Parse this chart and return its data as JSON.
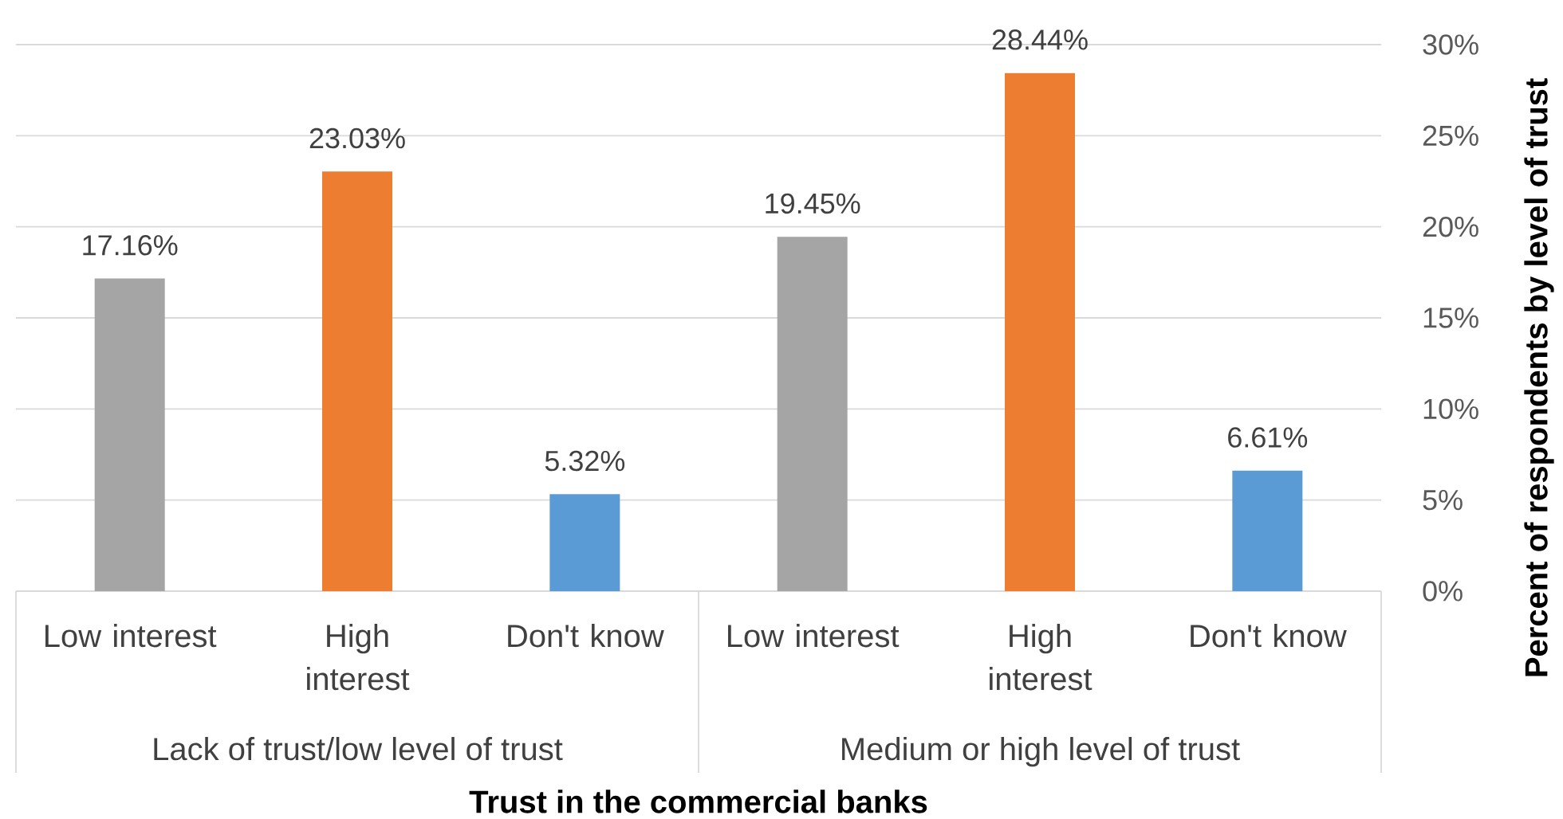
{
  "chart_data": {
    "type": "bar",
    "xlabel": "Trust in the commercial banks",
    "ylabel": "Percent of respondents by level of trust",
    "categories": [
      "Low interest",
      "High interest",
      "Don't know",
      "Low interest",
      "High interest",
      "Don't know"
    ],
    "values": [
      17.16,
      23.03,
      5.32,
      19.45,
      28.44,
      6.61
    ],
    "value_labels": [
      "17.16%",
      "23.03%",
      "5.32%",
      "19.45%",
      "28.44%",
      "6.61%"
    ],
    "colors": [
      "#a5a5a5",
      "#ed7d31",
      "#5b9bd5",
      "#a5a5a5",
      "#ed7d31",
      "#5b9bd5"
    ],
    "ylim": [
      0,
      30
    ],
    "yticks": [
      {
        "value": 0,
        "label": "0%"
      },
      {
        "value": 5,
        "label": "5%"
      },
      {
        "value": 10,
        "label": "10%"
      },
      {
        "value": 15,
        "label": "15%"
      },
      {
        "value": 20,
        "label": "20%"
      },
      {
        "value": 25,
        "label": "25%"
      },
      {
        "value": 30,
        "label": "30%"
      }
    ],
    "grid": "y",
    "annotations": [
      "Lack of trust/low level of trust",
      "Medium or high level of trust"
    ]
  }
}
